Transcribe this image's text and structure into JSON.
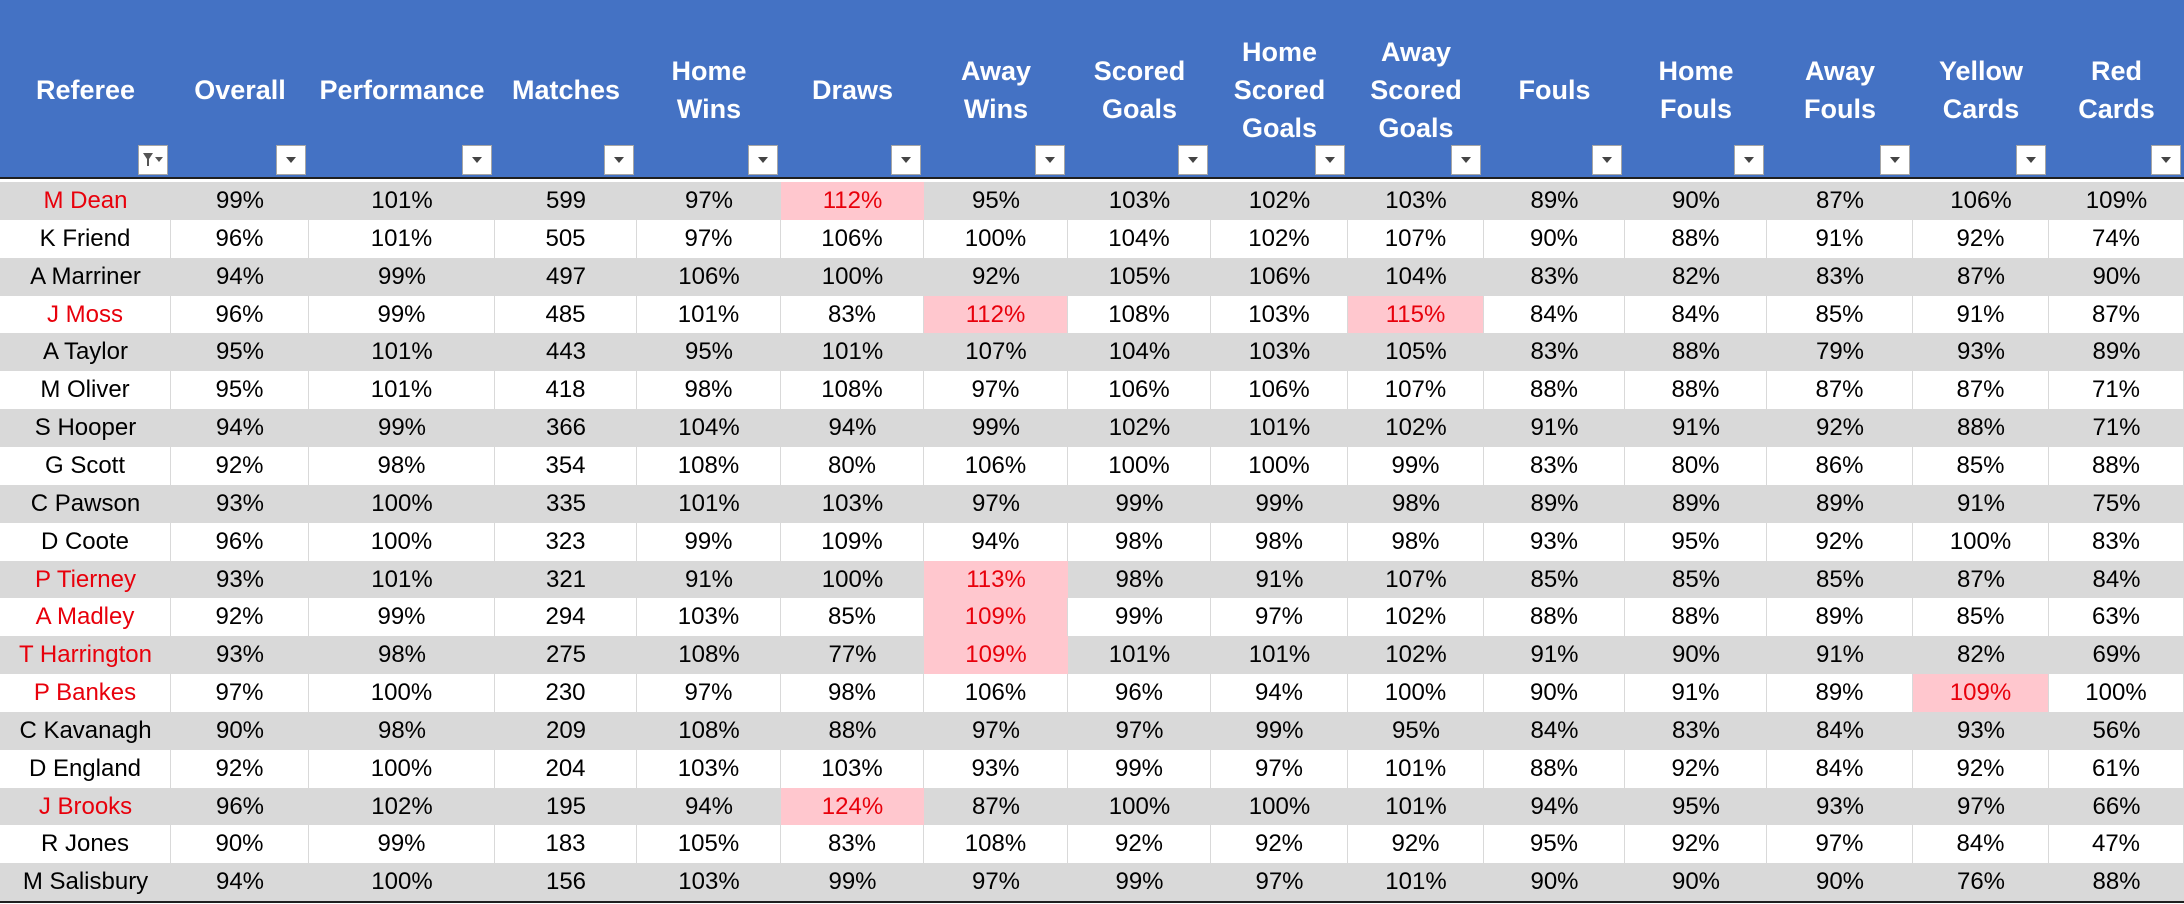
{
  "headers": [
    {
      "label": "Referee",
      "filter": "filter-funnel"
    },
    {
      "label": "Overall",
      "filter": "dropdown"
    },
    {
      "label": "Performance",
      "filter": "dropdown"
    },
    {
      "label": "Matches",
      "filter": "dropdown"
    },
    {
      "label": "Home\nWins",
      "filter": "dropdown"
    },
    {
      "label": "Draws",
      "filter": "dropdown"
    },
    {
      "label": "Away\nWins",
      "filter": "dropdown"
    },
    {
      "label": "Scored\nGoals",
      "filter": "dropdown"
    },
    {
      "label": "Home\nScored\nGoals",
      "filter": "dropdown"
    },
    {
      "label": "Away\nScored\nGoals",
      "filter": "dropdown"
    },
    {
      "label": "Fouls",
      "filter": "dropdown"
    },
    {
      "label": "Home\nFouls",
      "filter": "dropdown"
    },
    {
      "label": "Away\nFouls",
      "filter": "dropdown"
    },
    {
      "label": "Yellow\nCards",
      "filter": "dropdown"
    },
    {
      "label": "Red Cards",
      "filter": "dropdown"
    }
  ],
  "colors": {
    "header_bg": "#4472c4",
    "row_gray": "#d9d9d9",
    "row_white": "#ffffff",
    "red_text": "#e8000b",
    "highlight_fill": "#ffc7ce"
  },
  "rows": [
    {
      "cells": [
        "M Dean",
        "99%",
        "101%",
        "599",
        "97%",
        "112%",
        "95%",
        "103%",
        "102%",
        "103%",
        "89%",
        "90%",
        "87%",
        "106%",
        "109%"
      ],
      "red_name": true,
      "highlight": [
        5
      ]
    },
    {
      "cells": [
        "K Friend",
        "96%",
        "101%",
        "505",
        "97%",
        "106%",
        "100%",
        "104%",
        "102%",
        "107%",
        "90%",
        "88%",
        "91%",
        "92%",
        "74%"
      ],
      "red_name": false,
      "highlight": []
    },
    {
      "cells": [
        "A Marriner",
        "94%",
        "99%",
        "497",
        "106%",
        "100%",
        "92%",
        "105%",
        "106%",
        "104%",
        "83%",
        "82%",
        "83%",
        "87%",
        "90%"
      ],
      "red_name": false,
      "highlight": []
    },
    {
      "cells": [
        "J Moss",
        "96%",
        "99%",
        "485",
        "101%",
        "83%",
        "112%",
        "108%",
        "103%",
        "115%",
        "84%",
        "84%",
        "85%",
        "91%",
        "87%"
      ],
      "red_name": true,
      "highlight": [
        6,
        9
      ]
    },
    {
      "cells": [
        "A Taylor",
        "95%",
        "101%",
        "443",
        "95%",
        "101%",
        "107%",
        "104%",
        "103%",
        "105%",
        "83%",
        "88%",
        "79%",
        "93%",
        "89%"
      ],
      "red_name": false,
      "highlight": []
    },
    {
      "cells": [
        "M Oliver",
        "95%",
        "101%",
        "418",
        "98%",
        "108%",
        "97%",
        "106%",
        "106%",
        "107%",
        "88%",
        "88%",
        "87%",
        "87%",
        "71%"
      ],
      "red_name": false,
      "highlight": []
    },
    {
      "cells": [
        "S Hooper",
        "94%",
        "99%",
        "366",
        "104%",
        "94%",
        "99%",
        "102%",
        "101%",
        "102%",
        "91%",
        "91%",
        "92%",
        "88%",
        "71%"
      ],
      "red_name": false,
      "highlight": []
    },
    {
      "cells": [
        "G Scott",
        "92%",
        "98%",
        "354",
        "108%",
        "80%",
        "106%",
        "100%",
        "100%",
        "99%",
        "83%",
        "80%",
        "86%",
        "85%",
        "88%"
      ],
      "red_name": false,
      "highlight": []
    },
    {
      "cells": [
        "C Pawson",
        "93%",
        "100%",
        "335",
        "101%",
        "103%",
        "97%",
        "99%",
        "99%",
        "98%",
        "89%",
        "89%",
        "89%",
        "91%",
        "75%"
      ],
      "red_name": false,
      "highlight": []
    },
    {
      "cells": [
        "D Coote",
        "96%",
        "100%",
        "323",
        "99%",
        "109%",
        "94%",
        "98%",
        "98%",
        "98%",
        "93%",
        "95%",
        "92%",
        "100%",
        "83%"
      ],
      "red_name": false,
      "highlight": []
    },
    {
      "cells": [
        "P Tierney",
        "93%",
        "101%",
        "321",
        "91%",
        "100%",
        "113%",
        "98%",
        "91%",
        "107%",
        "85%",
        "85%",
        "85%",
        "87%",
        "84%"
      ],
      "red_name": true,
      "highlight": [
        6
      ]
    },
    {
      "cells": [
        "A Madley",
        "92%",
        "99%",
        "294",
        "103%",
        "85%",
        "109%",
        "99%",
        "97%",
        "102%",
        "88%",
        "88%",
        "89%",
        "85%",
        "63%"
      ],
      "red_name": true,
      "highlight": [
        6
      ]
    },
    {
      "cells": [
        "T Harrington",
        "93%",
        "98%",
        "275",
        "108%",
        "77%",
        "109%",
        "101%",
        "101%",
        "102%",
        "91%",
        "90%",
        "91%",
        "82%",
        "69%"
      ],
      "red_name": true,
      "highlight": [
        6
      ]
    },
    {
      "cells": [
        "P Bankes",
        "97%",
        "100%",
        "230",
        "97%",
        "98%",
        "106%",
        "96%",
        "94%",
        "100%",
        "90%",
        "91%",
        "89%",
        "109%",
        "100%"
      ],
      "red_name": true,
      "highlight": [
        13
      ]
    },
    {
      "cells": [
        "C Kavanagh",
        "90%",
        "98%",
        "209",
        "108%",
        "88%",
        "97%",
        "97%",
        "99%",
        "95%",
        "84%",
        "83%",
        "84%",
        "93%",
        "56%"
      ],
      "red_name": false,
      "highlight": []
    },
    {
      "cells": [
        "D England",
        "92%",
        "100%",
        "204",
        "103%",
        "103%",
        "93%",
        "99%",
        "97%",
        "101%",
        "88%",
        "92%",
        "84%",
        "92%",
        "61%"
      ],
      "red_name": false,
      "highlight": []
    },
    {
      "cells": [
        "J Brooks",
        "96%",
        "102%",
        "195",
        "94%",
        "124%",
        "87%",
        "100%",
        "100%",
        "101%",
        "94%",
        "95%",
        "93%",
        "97%",
        "66%"
      ],
      "red_name": true,
      "highlight": [
        5
      ]
    },
    {
      "cells": [
        "R Jones",
        "90%",
        "99%",
        "183",
        "105%",
        "83%",
        "108%",
        "92%",
        "92%",
        "92%",
        "95%",
        "92%",
        "97%",
        "84%",
        "47%"
      ],
      "red_name": false,
      "highlight": []
    },
    {
      "cells": [
        "M Salisbury",
        "94%",
        "100%",
        "156",
        "103%",
        "99%",
        "97%",
        "99%",
        "97%",
        "101%",
        "90%",
        "90%",
        "90%",
        "76%",
        "88%"
      ],
      "red_name": false,
      "highlight": []
    }
  ]
}
